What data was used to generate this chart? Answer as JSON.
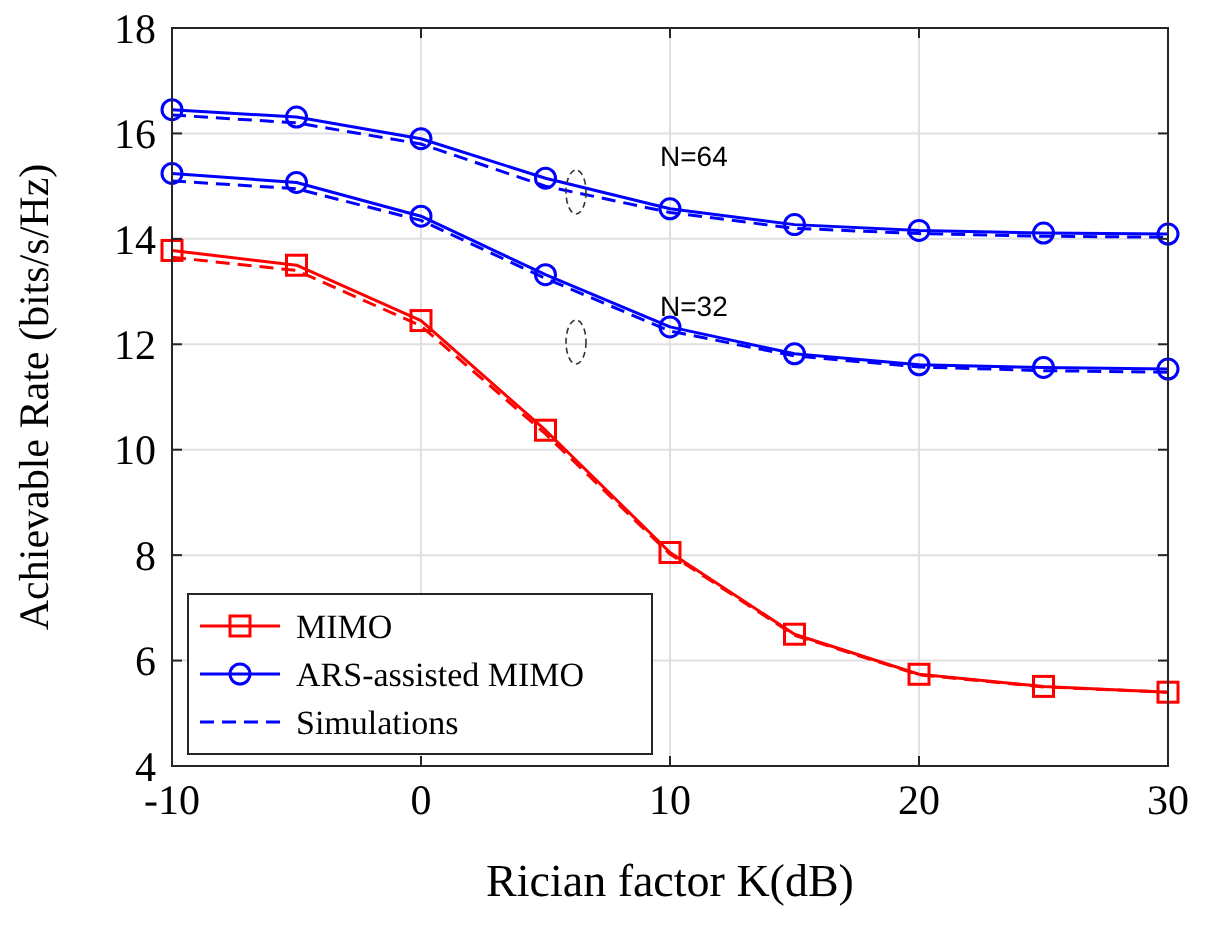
{
  "chart_data": {
    "type": "line",
    "xlabel": "Rician factor K(dB)",
    "ylabel": "Achievable Rate (bits/s/Hz)",
    "x": [
      -10,
      -5,
      0,
      5,
      10,
      15,
      20,
      25,
      30
    ],
    "xlim": [
      -10,
      30
    ],
    "xticks": [
      -10,
      0,
      10,
      20,
      30
    ],
    "ylim": [
      4,
      18
    ],
    "yticks": [
      4,
      6,
      8,
      10,
      12,
      14,
      16,
      18
    ],
    "grid": true,
    "legend": "bottom left",
    "series": [
      {
        "name": "MIMO",
        "color": "#ff0000",
        "marker": "square",
        "line_style": "solid",
        "values": [
          13.78,
          13.5,
          12.45,
          10.37,
          8.05,
          6.5,
          5.74,
          5.51,
          5.4
        ]
      },
      {
        "name": "ARS-assisted MIMO",
        "color": "#0000ff",
        "marker": "circle",
        "line_style": "solid",
        "values": [
          16.45,
          16.31,
          15.9,
          15.15,
          14.57,
          14.27,
          14.16,
          14.11,
          14.09
        ]
      },
      {
        "name": "Simulations",
        "color": "#0000ff",
        "marker": "none",
        "line_style": "dashed",
        "values": [
          16.35,
          16.2,
          15.8,
          15.0,
          14.5,
          14.2,
          14.1,
          14.05,
          14.03
        ]
      },
      {
        "color": "#0000ff",
        "marker": "circle",
        "line_style": "solid",
        "values": [
          15.24,
          15.07,
          14.43,
          13.32,
          12.33,
          11.82,
          11.61,
          11.56,
          11.53
        ]
      },
      {
        "color": "#0000ff",
        "marker": "none",
        "line_style": "dashed",
        "values": [
          15.1,
          14.95,
          14.35,
          13.25,
          12.25,
          11.78,
          11.57,
          11.5,
          11.47
        ]
      },
      {
        "color": "#ff0000",
        "marker": "none",
        "line_style": "dashed",
        "values": [
          13.65,
          13.4,
          12.35,
          10.3,
          8.02,
          6.48,
          5.73,
          5.5,
          5.4
        ]
      }
    ],
    "annotations": [
      "N=64",
      "N=32"
    ]
  }
}
